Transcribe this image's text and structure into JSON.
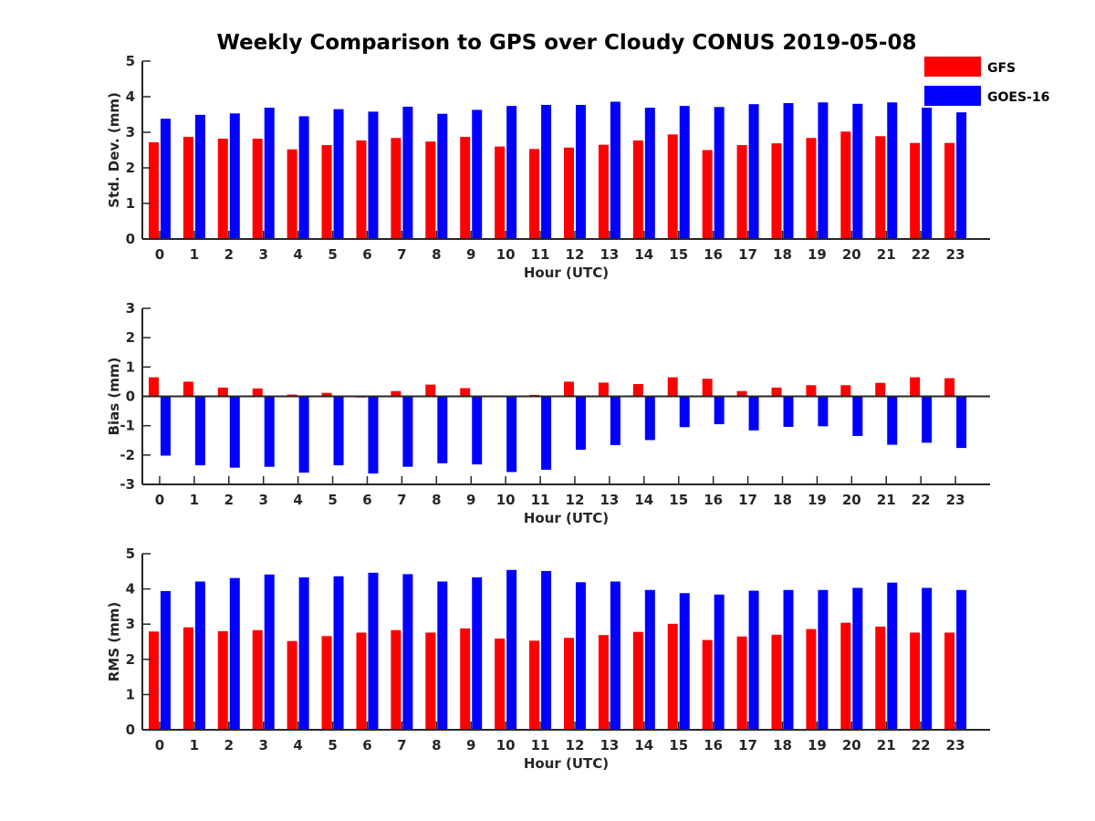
{
  "title": "Weekly Comparison to GPS over Cloudy CONUS 2019-05-08",
  "legend": {
    "placement": "top-right",
    "items": [
      {
        "name": "GFS",
        "color": "#ff0000"
      },
      {
        "name": "GOES-16",
        "color": "#0000ff"
      }
    ]
  },
  "chart_data": [
    {
      "type": "bar",
      "xlabel": "Hour (UTC)",
      "ylabel": "Std. Dev. (mm)",
      "ylim": [
        0,
        5
      ],
      "yticks": [
        "0",
        "1",
        "2",
        "3",
        "4",
        "5"
      ],
      "categories": [
        "0",
        "1",
        "2",
        "3",
        "4",
        "5",
        "6",
        "7",
        "8",
        "9",
        "10",
        "11",
        "12",
        "13",
        "14",
        "15",
        "16",
        "17",
        "18",
        "19",
        "20",
        "21",
        "22",
        "23"
      ],
      "series": [
        {
          "name": "GFS",
          "color": "#ff0000",
          "values": [
            2.72,
            2.87,
            2.82,
            2.82,
            2.52,
            2.64,
            2.77,
            2.84,
            2.74,
            2.87,
            2.6,
            2.53,
            2.57,
            2.65,
            2.77,
            2.94,
            2.5,
            2.64,
            2.69,
            2.84,
            3.02,
            2.89,
            2.7,
            2.7
          ]
        },
        {
          "name": "GOES-16",
          "color": "#0000ff",
          "values": [
            3.38,
            3.49,
            3.53,
            3.69,
            3.45,
            3.65,
            3.58,
            3.72,
            3.52,
            3.63,
            3.74,
            3.77,
            3.77,
            3.86,
            3.69,
            3.74,
            3.71,
            3.79,
            3.82,
            3.84,
            3.8,
            3.84,
            3.69,
            3.56
          ]
        }
      ]
    },
    {
      "type": "bar",
      "xlabel": "Hour (UTC)",
      "ylabel": "Bias (mm)",
      "ylim": [
        -3,
        3
      ],
      "yticks": [
        "-3",
        "-2",
        "-1",
        "0",
        "1",
        "2",
        "3"
      ],
      "zero_line": true,
      "categories": [
        "0",
        "1",
        "2",
        "3",
        "4",
        "5",
        "6",
        "7",
        "8",
        "9",
        "10",
        "11",
        "12",
        "13",
        "14",
        "15",
        "16",
        "17",
        "18",
        "19",
        "20",
        "21",
        "22",
        "23"
      ],
      "series": [
        {
          "name": "GFS",
          "color": "#ff0000",
          "values": [
            0.65,
            0.5,
            0.3,
            0.27,
            0.06,
            0.12,
            -0.04,
            0.18,
            0.4,
            0.28,
            0.0,
            0.05,
            0.5,
            0.47,
            0.42,
            0.65,
            0.6,
            0.18,
            0.3,
            0.38,
            0.38,
            0.46,
            0.65,
            0.62
          ]
        },
        {
          "name": "GOES-16",
          "color": "#0000ff",
          "values": [
            -2.02,
            -2.35,
            -2.43,
            -2.4,
            -2.6,
            -2.35,
            -2.63,
            -2.4,
            -2.28,
            -2.32,
            -2.58,
            -2.5,
            -1.82,
            -1.66,
            -1.49,
            -1.05,
            -0.95,
            -1.16,
            -1.04,
            -1.02,
            -1.35,
            -1.65,
            -1.58,
            -1.76
          ]
        }
      ]
    },
    {
      "type": "bar",
      "xlabel": "Hour (UTC)",
      "ylabel": "RMS (mm)",
      "ylim": [
        0,
        5
      ],
      "yticks": [
        "0",
        "1",
        "2",
        "3",
        "4",
        "5"
      ],
      "categories": [
        "0",
        "1",
        "2",
        "3",
        "4",
        "5",
        "6",
        "7",
        "8",
        "9",
        "10",
        "11",
        "12",
        "13",
        "14",
        "15",
        "16",
        "17",
        "18",
        "19",
        "20",
        "21",
        "22",
        "23"
      ],
      "series": [
        {
          "name": "GFS",
          "color": "#ff0000",
          "values": [
            2.79,
            2.91,
            2.8,
            2.83,
            2.52,
            2.66,
            2.76,
            2.83,
            2.76,
            2.88,
            2.59,
            2.53,
            2.61,
            2.69,
            2.78,
            3.01,
            2.55,
            2.65,
            2.7,
            2.86,
            3.04,
            2.93,
            2.76,
            2.76
          ]
        },
        {
          "name": "GOES-16",
          "color": "#0000ff",
          "values": [
            3.94,
            4.21,
            4.31,
            4.41,
            4.33,
            4.36,
            4.46,
            4.42,
            4.21,
            4.33,
            4.54,
            4.51,
            4.19,
            4.21,
            3.97,
            3.88,
            3.84,
            3.95,
            3.97,
            3.97,
            4.03,
            4.18,
            4.03,
            3.97
          ]
        }
      ]
    }
  ]
}
